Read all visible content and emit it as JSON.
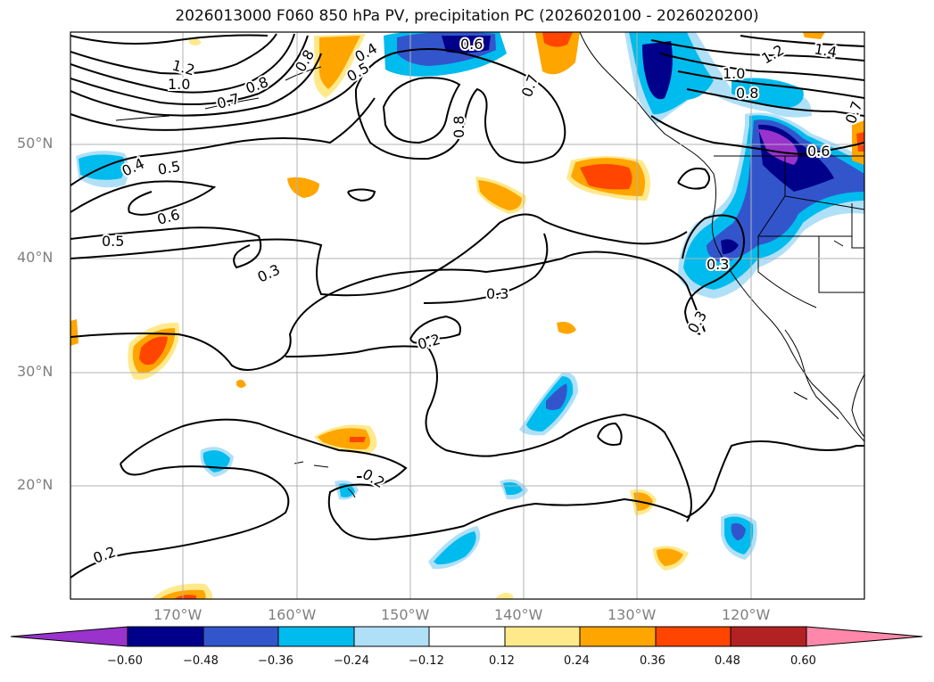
{
  "title": "2026013000 F060 850 hPa PV, precipitation PC (2026020100 - 2026020200)",
  "map": {
    "lat_labels": [
      "50°N",
      "40°N",
      "30°N",
      "20°N"
    ],
    "lon_labels": [
      "170°W",
      "160°W",
      "150°W",
      "140°W",
      "130°W",
      "120°W"
    ],
    "contour_labels": [
      "1.2",
      "1.0",
      "0.8",
      "0.7",
      "0.8",
      "0.5",
      "0.4",
      "0.6",
      "0.7",
      "0.8",
      "1.0",
      "0.8",
      "1.2",
      "1.4",
      "0.7",
      "0.6",
      "0.4",
      "0.5",
      "0.6",
      "0.5",
      "0.3",
      "0.3",
      "0.2",
      "0.3",
      "0.3",
      "0.2",
      "0.2"
    ]
  },
  "colorbar": {
    "tick_labels": [
      "−0.60",
      "−0.48",
      "−0.36",
      "−0.24",
      "−0.12",
      "0.12",
      "0.24",
      "0.36",
      "0.48",
      "0.60"
    ],
    "colors": [
      "#9933cc",
      "#00008b",
      "#3355cc",
      "#00bbee",
      "#b0e0f8",
      "#ffffff",
      "#ffe98a",
      "#ffa500",
      "#ff4500",
      "#b22222",
      "#ff88aa"
    ]
  }
}
